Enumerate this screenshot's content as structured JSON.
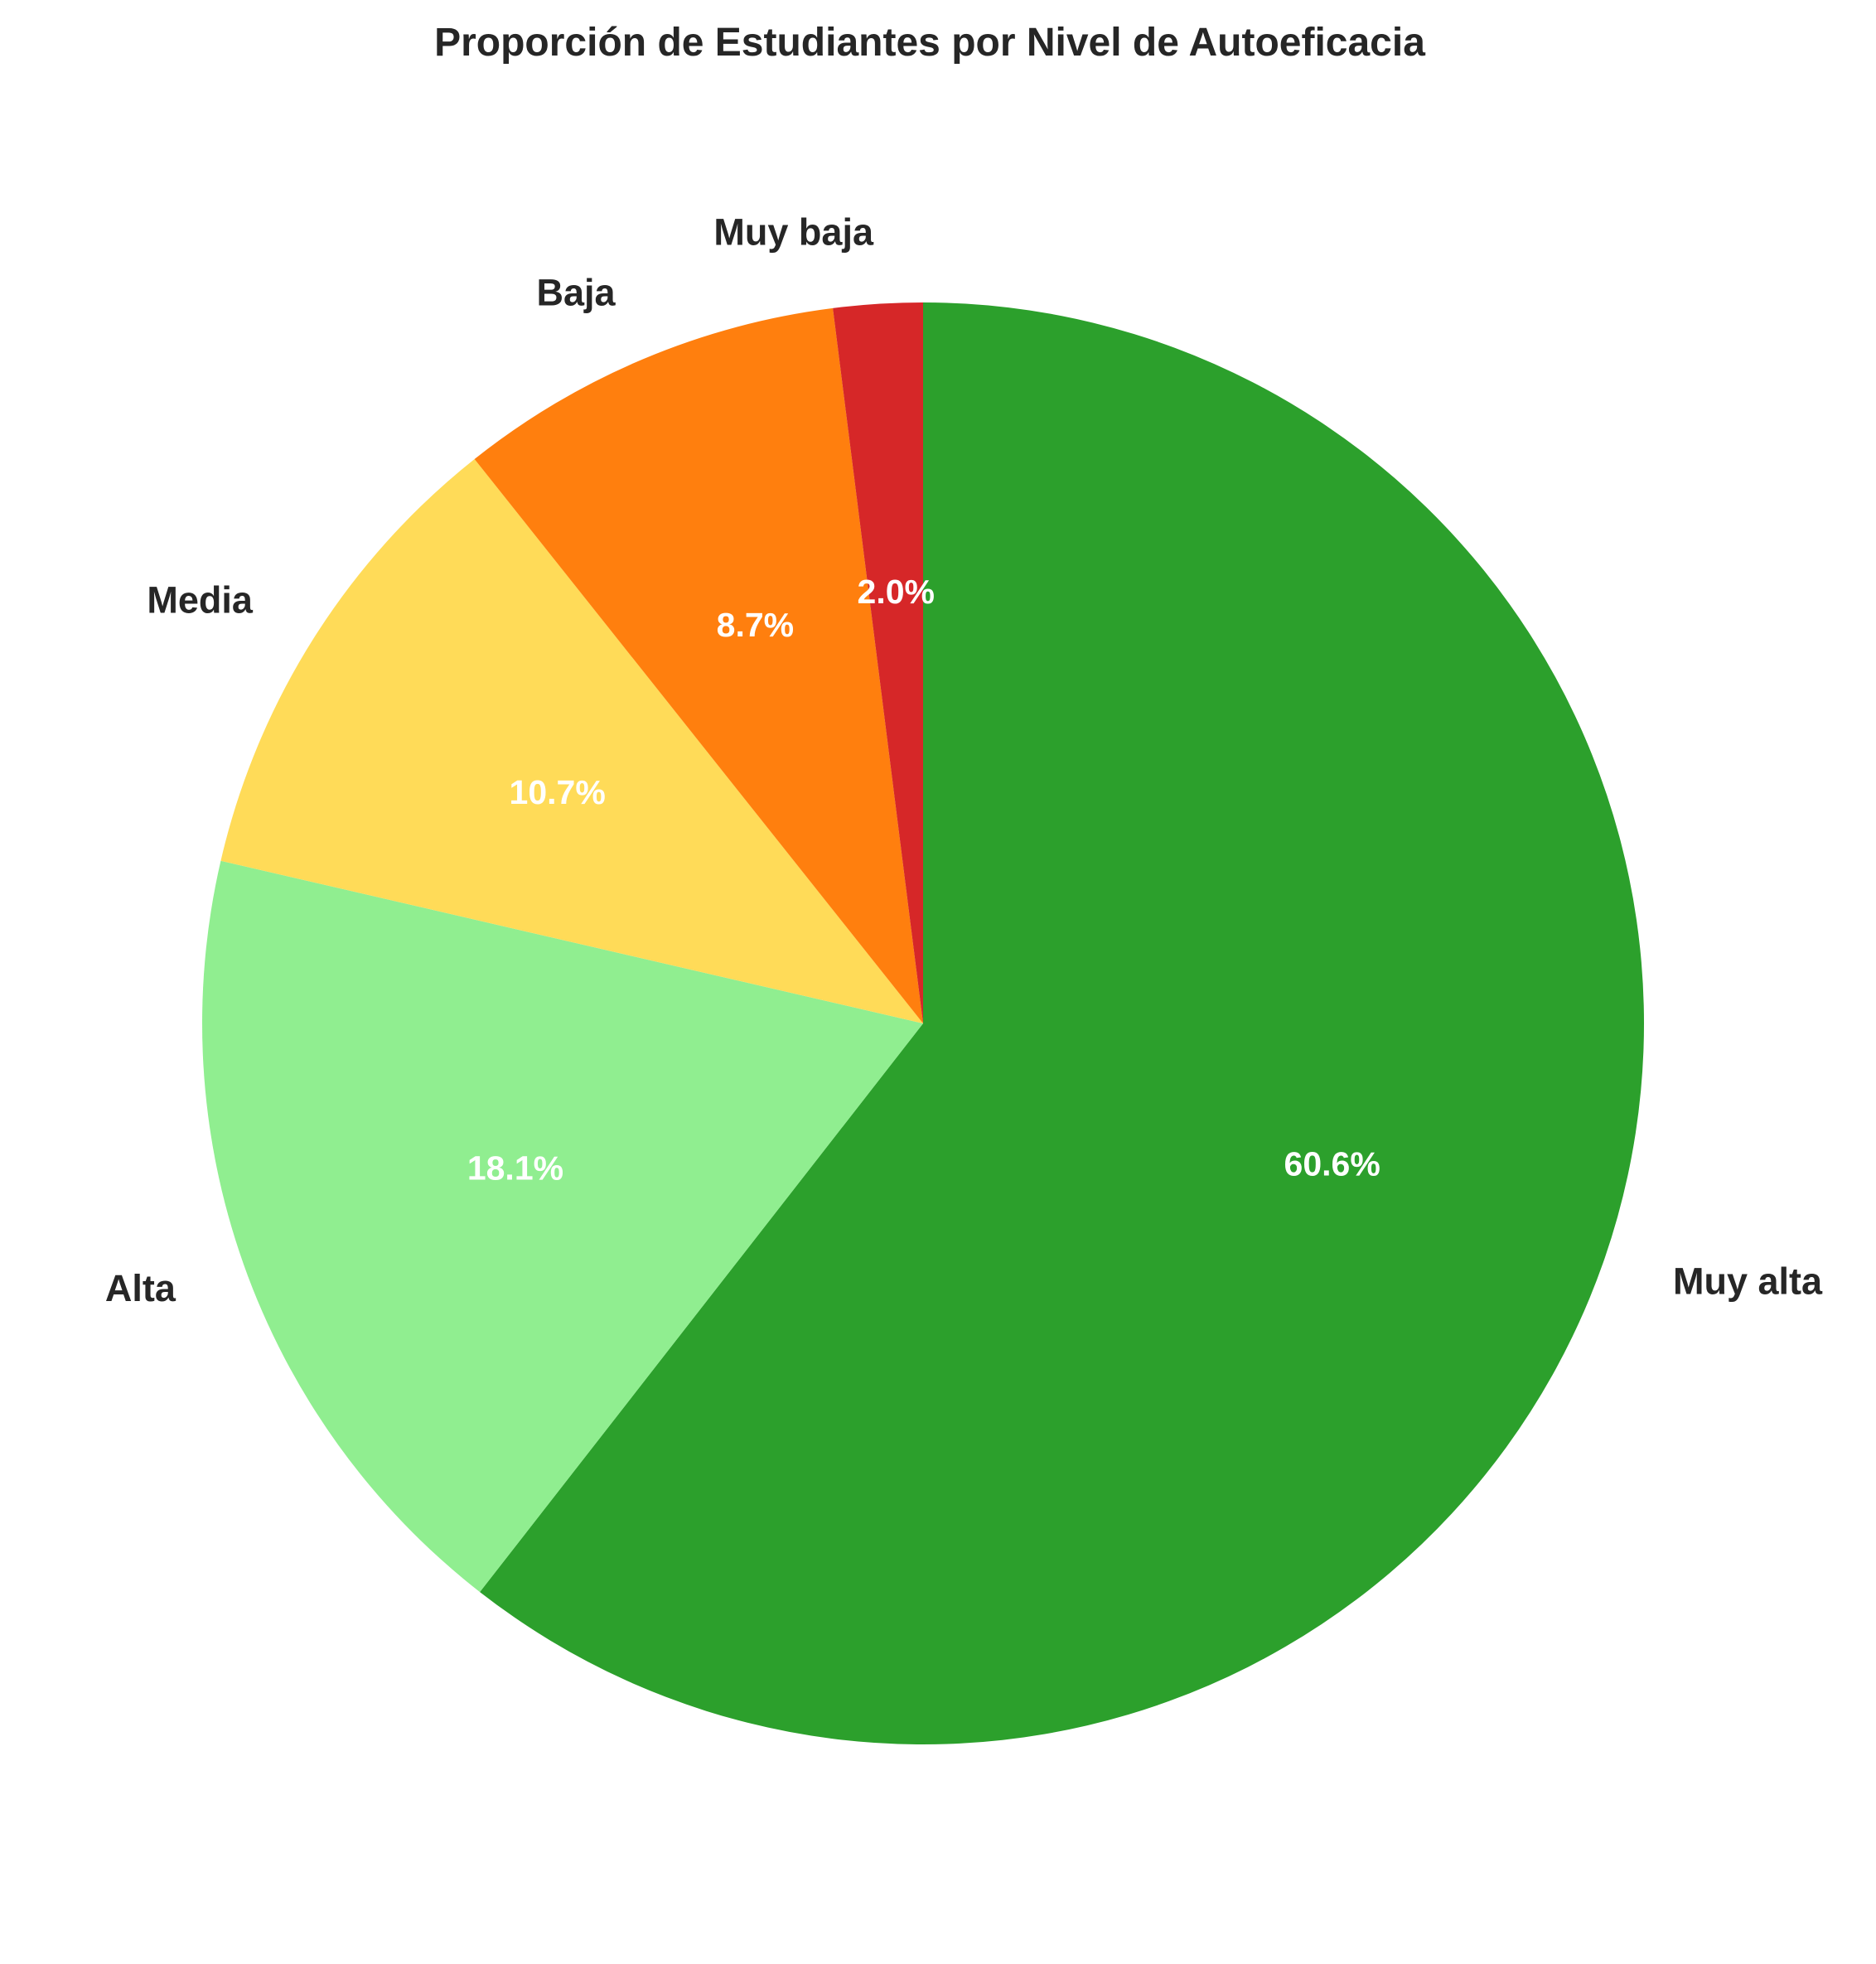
{
  "chart_data": {
    "type": "pie",
    "title": "Proporción de Estudiantes por Nivel de Autoeficacia",
    "start_angle_deg": 90,
    "direction": "clockwise",
    "slices": [
      {
        "label": "Muy alta",
        "value": 60.6,
        "pct_label": "60.6%",
        "color": "#2ca02c"
      },
      {
        "label": "Alta",
        "value": 18.1,
        "pct_label": "18.1%",
        "color": "#90ee90"
      },
      {
        "label": "Media",
        "value": 10.7,
        "pct_label": "10.7%",
        "color": "#ffdb58"
      },
      {
        "label": "Baja",
        "value": 8.7,
        "pct_label": "8.7%",
        "color": "#ff7f0e"
      },
      {
        "label": "Muy baja",
        "value": 2.0,
        "pct_label": "2.0%",
        "color": "#d62728"
      }
    ]
  }
}
